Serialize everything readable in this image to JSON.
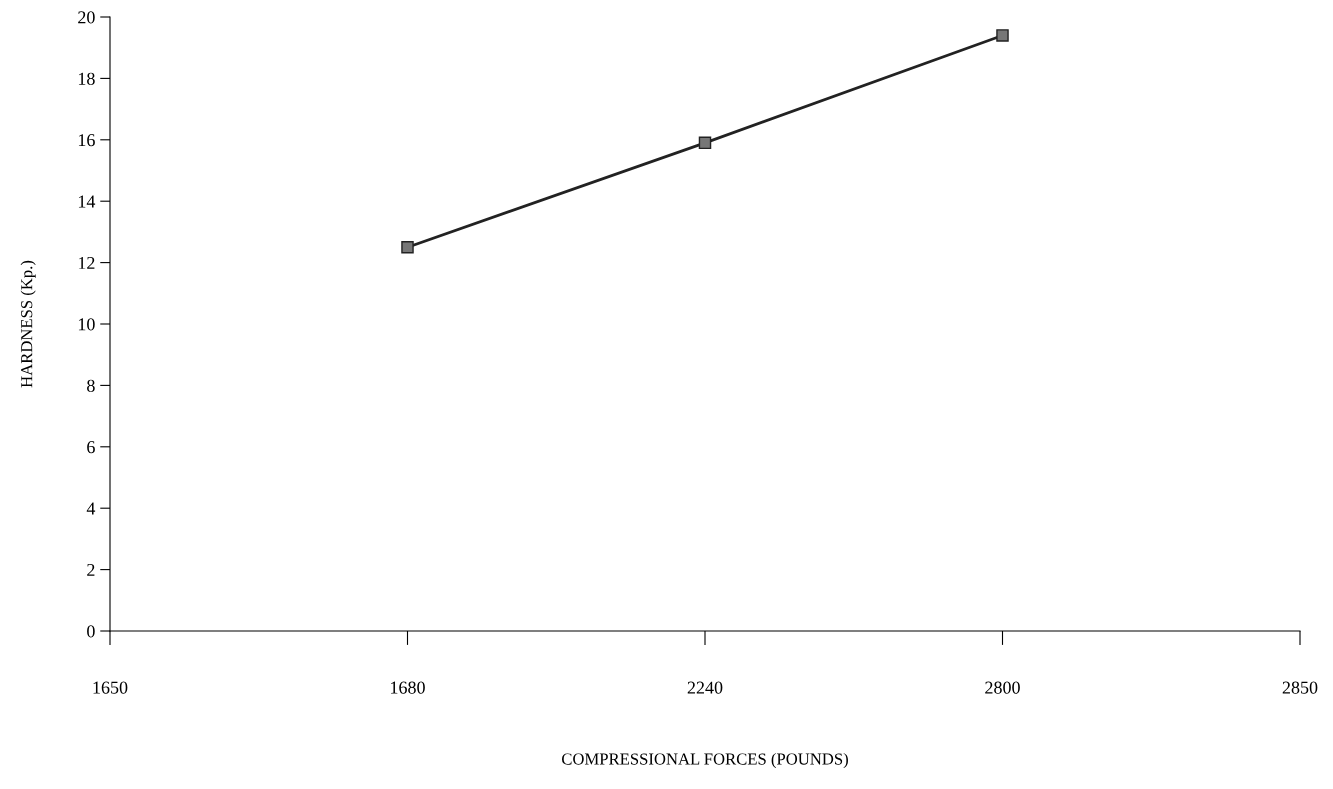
{
  "chart_data": {
    "type": "line",
    "xlabel": "COMPRESSIONAL FORCES (POUNDS)",
    "ylabel": "HARDNESS (Kp.)",
    "categories": [
      "1650",
      "1680",
      "2240",
      "2800",
      "2850"
    ],
    "series": [
      {
        "color": "#222222",
        "values": [
          null,
          12.5,
          15.9,
          19.4,
          null
        ]
      }
    ],
    "ylim": [
      0,
      20
    ],
    "yticks": [
      0,
      2,
      4,
      6,
      8,
      10,
      12,
      14,
      16,
      18,
      20
    ],
    "marker": "square",
    "line_style": "solid",
    "grid": false
  }
}
